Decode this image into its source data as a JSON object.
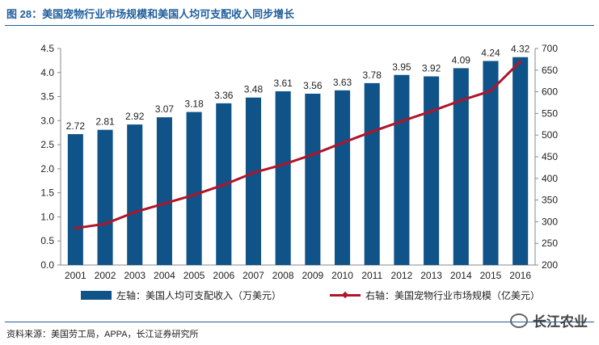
{
  "figure_title": "图 28：美国宠物行业市场规模和美国人均可支配收入同步增长",
  "source": "资料来源：美国劳工局，APPA，长江证券研究所",
  "watermark": "长江农业",
  "colors": {
    "bar": "#0f5389",
    "line": "#b0152a",
    "title": "#1f5f9c"
  },
  "legend": {
    "bar_label": "左轴：美国人均可支配收入（万美元）",
    "line_label": "右轴：美国宠物行业市场规模（亿美元）"
  },
  "chart_data": {
    "type": "bar",
    "categories": [
      "2001",
      "2002",
      "2003",
      "2004",
      "2005",
      "2006",
      "2007",
      "2008",
      "2009",
      "2010",
      "2011",
      "2012",
      "2013",
      "2014",
      "2015",
      "2016"
    ],
    "series": [
      {
        "name": "左轴：美国人均可支配收入（万美元）",
        "type": "bar",
        "axis": "left",
        "values": [
          2.72,
          2.81,
          2.92,
          3.07,
          3.18,
          3.36,
          3.48,
          3.61,
          3.56,
          3.63,
          3.78,
          3.95,
          3.92,
          4.09,
          4.24,
          4.32
        ],
        "labels": [
          "2.72",
          "2.81",
          "2.92",
          "3.07",
          "3.18",
          "3.36",
          "3.48",
          "3.61",
          "3.56",
          "3.63",
          "3.78",
          "3.95",
          "3.92",
          "4.09",
          "4.24",
          "4.32"
        ]
      },
      {
        "name": "右轴：美国宠物行业市场规模（亿美元）",
        "type": "line",
        "axis": "right",
        "values": [
          285,
          295,
          322,
          342,
          362,
          385,
          413,
          432,
          455,
          482,
          508,
          532,
          555,
          580,
          602,
          670
        ]
      }
    ],
    "left_axis": {
      "min": 0,
      "max": 4.5,
      "ticks": [
        "0.0",
        "0.5",
        "1.0",
        "1.5",
        "2.0",
        "2.5",
        "3.0",
        "3.5",
        "4.0",
        "4.5"
      ]
    },
    "right_axis": {
      "min": 200,
      "max": 700,
      "ticks": [
        "200",
        "250",
        "300",
        "350",
        "400",
        "450",
        "500",
        "550",
        "600",
        "650",
        "700"
      ]
    },
    "legend_position": "bottom"
  }
}
